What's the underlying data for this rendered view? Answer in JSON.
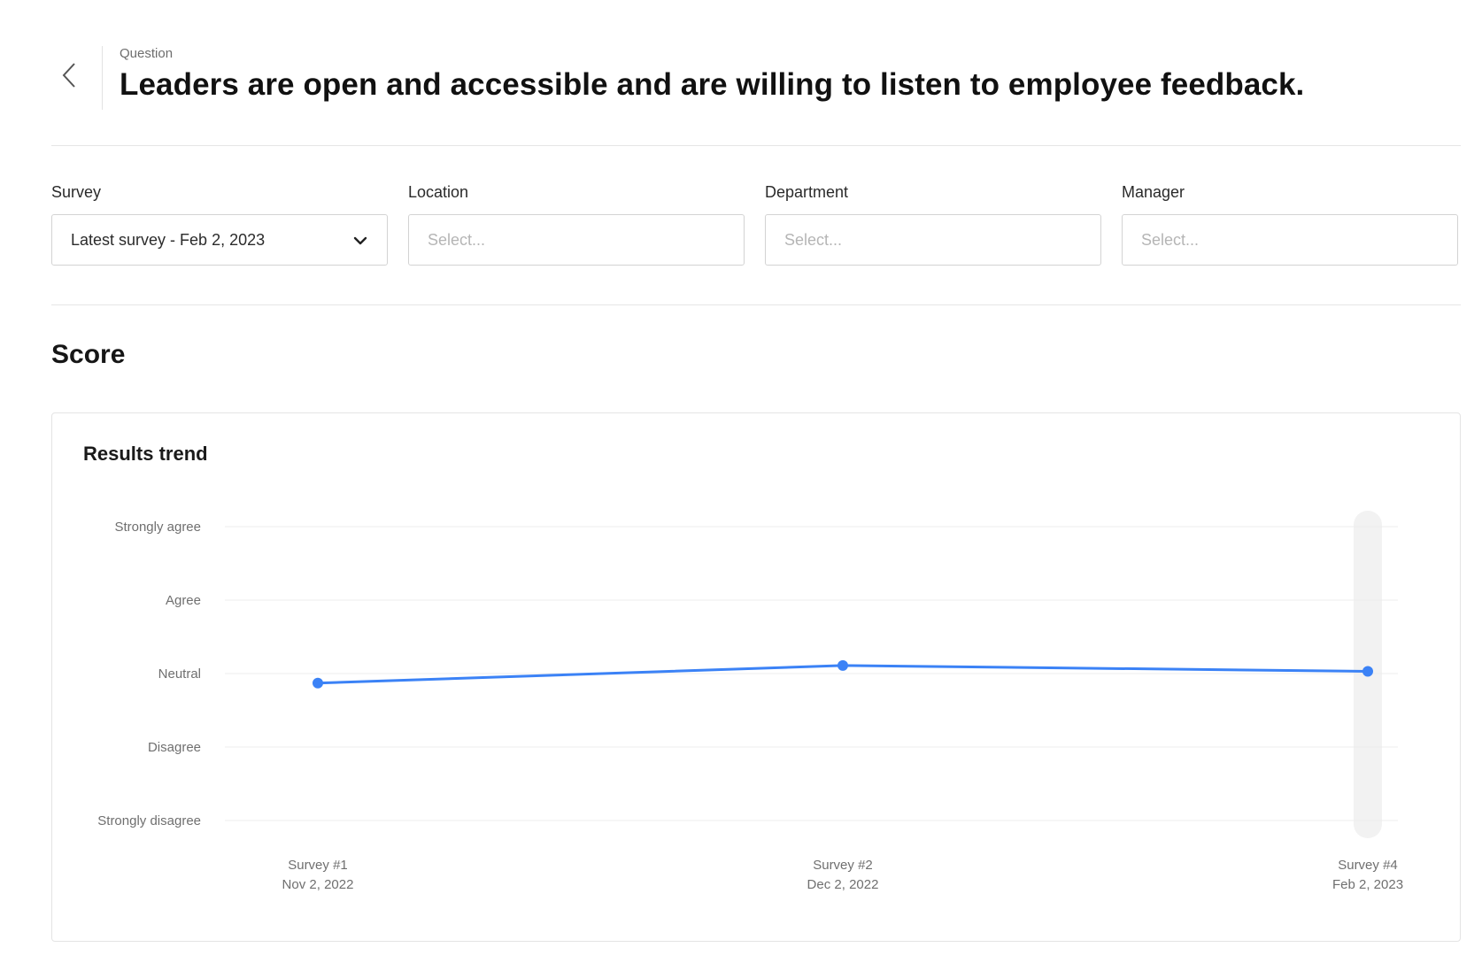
{
  "header": {
    "back_icon": "chevron-left-icon",
    "question_label": "Question",
    "question_text": "Leaders are open and accessible and are willing to listen to employee feedback."
  },
  "filters": {
    "survey": {
      "label": "Survey",
      "value": "Latest survey - Feb 2, 2023",
      "icon": "chevron-down-icon"
    },
    "location": {
      "label": "Location",
      "placeholder": "Select..."
    },
    "department": {
      "label": "Department",
      "placeholder": "Select..."
    },
    "manager": {
      "label": "Manager",
      "placeholder": "Select..."
    }
  },
  "score": {
    "title": "Score",
    "card_title": "Results trend"
  },
  "chart_data": {
    "type": "line",
    "title": "Results trend",
    "y_scale": [
      "Strongly disagree",
      "Disagree",
      "Neutral",
      "Agree",
      "Strongly agree"
    ],
    "ylim": [
      1,
      5
    ],
    "grid": true,
    "highlighted_index": 2,
    "line_color": "#3b82f6",
    "x": [
      {
        "label": "Survey #1",
        "date": "Nov 2, 2022"
      },
      {
        "label": "Survey #2",
        "date": "Dec 2, 2022"
      },
      {
        "label": "Survey #4",
        "date": "Feb 2, 2023"
      }
    ],
    "values": [
      2.87,
      3.11,
      3.03
    ]
  }
}
